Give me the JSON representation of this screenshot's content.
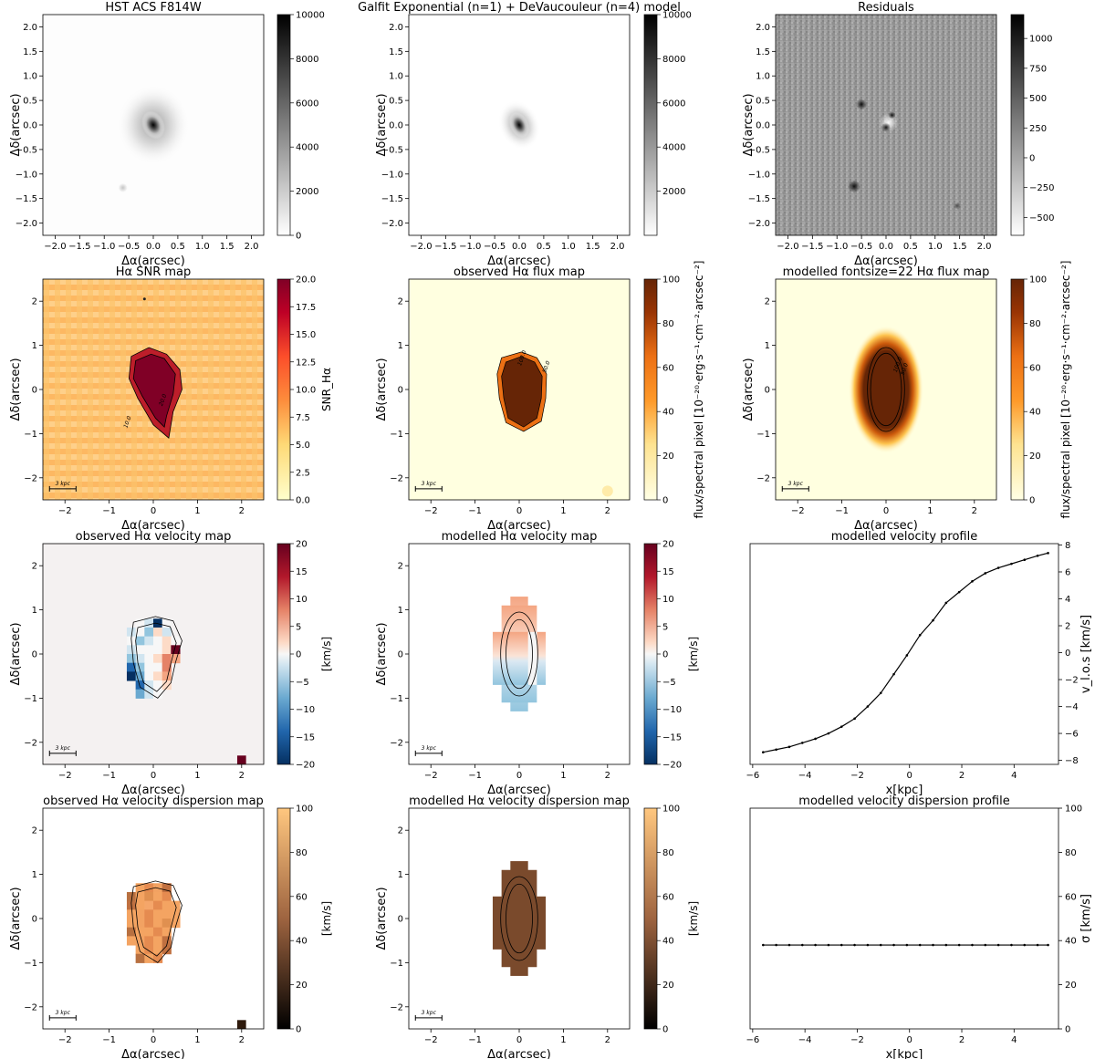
{
  "chart_data": [
    {
      "type": "heatmap",
      "title": "HST ACS F814W",
      "xlabel": "Δα(arcsec)",
      "ylabel": "Δδ(arcsec)",
      "xlim": [
        -2.25,
        2.25
      ],
      "ylim": [
        -2.25,
        2.25
      ],
      "xticks": [
        "−2.0",
        "−1.5",
        "−1.0",
        "−0.5",
        "0.0",
        "0.5",
        "1.0",
        "1.5",
        "2.0"
      ],
      "yticks": [
        "−2.0",
        "−1.5",
        "−1.0",
        "−0.5",
        "0.0",
        "0.5",
        "1.0",
        "1.5",
        "2.0"
      ],
      "colormap": "Greys",
      "colorbar_range": [
        0,
        10000
      ],
      "colorbar_ticks": [
        "0",
        "2000",
        "4000",
        "6000",
        "8000",
        "10000"
      ],
      "colorbar_label": ""
    },
    {
      "type": "heatmap",
      "title": "Galfit Exponential (n=1) + DeVaucouleur (n=4) model",
      "xlabel": "Δα(arcsec)",
      "ylabel": "Δδ(arcsec)",
      "xlim": [
        -2.25,
        2.25
      ],
      "ylim": [
        -2.25,
        2.25
      ],
      "xticks": [
        "−2.0",
        "−1.5",
        "−1.0",
        "−0.5",
        "0.0",
        "0.5",
        "1.0",
        "1.5",
        "2.0"
      ],
      "yticks": [
        "−2.0",
        "−1.5",
        "−1.0",
        "−0.5",
        "0.0",
        "0.5",
        "1.0",
        "1.5",
        "2.0"
      ],
      "colormap": "Greys",
      "colorbar_range": [
        0,
        10000
      ],
      "colorbar_ticks": [
        "2000",
        "4000",
        "6000",
        "8000",
        "10000"
      ],
      "colorbar_label": ""
    },
    {
      "type": "heatmap",
      "title": "Residuals",
      "xlabel": "Δα(arcsec)",
      "ylabel": "Δδ(arcsec)",
      "xlim": [
        -2.25,
        2.25
      ],
      "ylim": [
        -2.25,
        2.25
      ],
      "xticks": [
        "−2.0",
        "−1.5",
        "−1.0",
        "−0.5",
        "0.0",
        "0.5",
        "1.0",
        "1.5",
        "2.0"
      ],
      "yticks": [
        "−2.0",
        "−1.5",
        "−1.0",
        "−0.5",
        "0.0",
        "0.5",
        "1.0",
        "1.5",
        "2.0"
      ],
      "colormap": "Greys",
      "colorbar_range": [
        -650,
        1200
      ],
      "colorbar_ticks": [
        "−500",
        "−250",
        "0",
        "250",
        "500",
        "750",
        "1000"
      ],
      "colorbar_label": ""
    },
    {
      "type": "heatmap",
      "title": "Hα SNR map",
      "xlabel": "Δα(arcsec)",
      "ylabel": "Δδ(arcsec)",
      "xlim": [
        -2.5,
        2.5
      ],
      "ylim": [
        -2.5,
        2.5
      ],
      "xticks": [
        "−2",
        "−1",
        "0",
        "1",
        "2"
      ],
      "yticks": [
        "−2",
        "−1",
        "0",
        "1",
        "2"
      ],
      "colormap": "YlOrRd",
      "colorbar_range": [
        0,
        20
      ],
      "colorbar_ticks": [
        "0.0",
        "2.5",
        "5.0",
        "7.5",
        "10.0",
        "12.5",
        "15.0",
        "17.5",
        "20.0"
      ],
      "colorbar_label": "SNR_Hα",
      "contour_labels": [
        "10.0",
        "20.0"
      ],
      "scalebar_label": "3 kpc"
    },
    {
      "type": "heatmap",
      "title": "observed Hα flux map",
      "xlabel": "Δα(arcsec)",
      "ylabel": "Δδ(arcsec)",
      "xlim": [
        -2.5,
        2.5
      ],
      "ylim": [
        -2.5,
        2.5
      ],
      "xticks": [
        "−2",
        "−1",
        "0",
        "1",
        "2"
      ],
      "yticks": [
        "−2",
        "−1",
        "0",
        "1",
        "2"
      ],
      "colormap": "YlOrBr",
      "colorbar_range": [
        0,
        100
      ],
      "colorbar_ticks": [
        "0",
        "20",
        "40",
        "60",
        "80",
        "100"
      ],
      "colorbar_label": "flux/spectral pixel [10⁻²⁰·erg·s⁻¹·cm⁻²·arcsec⁻²]",
      "contour_labels": [
        "50.0",
        "100.0"
      ],
      "scalebar_label": "3 kpc"
    },
    {
      "type": "heatmap",
      "title": "modelled  fontsize=22 Hα flux map",
      "xlabel": "Δα(arcsec)",
      "ylabel": "Δδ(arcsec)",
      "xlim": [
        -2.5,
        2.5
      ],
      "ylim": [
        -2.5,
        2.5
      ],
      "xticks": [
        "−2",
        "−1",
        "0",
        "1",
        "2"
      ],
      "yticks": [
        "−2",
        "−1",
        "0",
        "1",
        "2"
      ],
      "colormap": "YlOrBr",
      "colorbar_range": [
        0,
        100
      ],
      "colorbar_ticks": [
        "0",
        "20",
        "40",
        "60",
        "80",
        "100"
      ],
      "colorbar_label": "flux/spectral pixel [10⁻²⁰·erg·s⁻¹·cm⁻²·arcsec⁻²]",
      "contour_labels": [
        "50.0",
        "100.0"
      ],
      "scalebar_label": "3 kpc"
    },
    {
      "type": "heatmap",
      "title": "observed Hα velocity map",
      "xlabel": "Δα(arcsec)",
      "ylabel": "Δδ(arcsec)",
      "xlim": [
        -2.5,
        2.5
      ],
      "ylim": [
        -2.5,
        2.5
      ],
      "xticks": [
        "−2",
        "−1",
        "0",
        "1",
        "2"
      ],
      "yticks": [
        "−2",
        "−1",
        "0",
        "1",
        "2"
      ],
      "colormap": "RdBu_r",
      "colorbar_range": [
        -20,
        20
      ],
      "colorbar_ticks": [
        "−20",
        "−15",
        "−10",
        "−5",
        "0",
        "5",
        "10",
        "15",
        "20"
      ],
      "colorbar_label": "[km/s]",
      "scalebar_label": "3 kpc"
    },
    {
      "type": "heatmap",
      "title": "modelled  Hα velocity map",
      "xlabel": "Δα(arcsec)",
      "ylabel": "Δδ(arcsec)",
      "xlim": [
        -2.5,
        2.5
      ],
      "ylim": [
        -2.5,
        2.5
      ],
      "xticks": [
        "−2",
        "−1",
        "0",
        "1",
        "2"
      ],
      "yticks": [
        "−2",
        "−1",
        "0",
        "1",
        "2"
      ],
      "colormap": "RdBu_r",
      "colorbar_range": [
        -20,
        20
      ],
      "colorbar_ticks": [
        "−20",
        "−15",
        "−10",
        "−5",
        "0",
        "5",
        "10",
        "15",
        "20"
      ],
      "colorbar_label": "[km/s]",
      "scalebar_label": "3 kpc"
    },
    {
      "type": "line",
      "title": "modelled velocity profile",
      "xlabel": "x[kpc]",
      "ylabel": "v_l.o.s [km/s]",
      "xlim": [
        -6.1,
        5.7
      ],
      "ylim": [
        -8.3,
        8.1
      ],
      "xticks": [
        "−6",
        "−4",
        "−2",
        "0",
        "2",
        "4"
      ],
      "yticks": [
        "−8",
        "−6",
        "−4",
        "−2",
        "0",
        "2",
        "4",
        "6",
        "8"
      ],
      "x": [
        -5.6,
        -5.1,
        -4.6,
        -4.1,
        -3.6,
        -3.1,
        -2.6,
        -2.1,
        -1.6,
        -1.1,
        -0.6,
        -0.1,
        0.4,
        0.9,
        1.4,
        1.9,
        2.4,
        2.9,
        3.4,
        3.9,
        4.4,
        4.9,
        5.3
      ],
      "y": [
        -7.4,
        -7.2,
        -7.0,
        -6.7,
        -6.4,
        -6.0,
        -5.5,
        -4.9,
        -4.0,
        -3.0,
        -1.6,
        -0.2,
        1.3,
        2.4,
        3.7,
        4.5,
        5.3,
        5.9,
        6.3,
        6.6,
        6.9,
        7.2,
        7.4
      ]
    },
    {
      "type": "heatmap",
      "title": "observed Hα velocity dispersion map",
      "xlabel": "Δα(arcsec)",
      "ylabel": "Δδ(arcsec)",
      "xlim": [
        -2.5,
        2.5
      ],
      "ylim": [
        -2.5,
        2.5
      ],
      "xticks": [
        "−2",
        "−1",
        "0",
        "1",
        "2"
      ],
      "yticks": [
        "−2",
        "−1",
        "0",
        "1",
        "2"
      ],
      "colormap": "copper",
      "colorbar_range": [
        0,
        100
      ],
      "colorbar_ticks": [
        "0",
        "20",
        "40",
        "60",
        "80",
        "100"
      ],
      "colorbar_label": "[km/s]",
      "scalebar_label": "3 kpc"
    },
    {
      "type": "heatmap",
      "title": "modelled Hα velocity dispersion map",
      "xlabel": "Δα(arcsec)",
      "ylabel": "Δδ(arcsec)",
      "xlim": [
        -2.5,
        2.5
      ],
      "ylim": [
        -2.5,
        2.5
      ],
      "xticks": [
        "−2",
        "−1",
        "0",
        "1",
        "2"
      ],
      "yticks": [
        "−2",
        "−1",
        "0",
        "1",
        "2"
      ],
      "colormap": "copper",
      "colorbar_range": [
        0,
        100
      ],
      "colorbar_ticks": [
        "0",
        "20",
        "40",
        "60",
        "80",
        "100"
      ],
      "colorbar_label": "[km/s]",
      "scalebar_label": "3 kpc"
    },
    {
      "type": "line",
      "title": "modelled  velocity dispersion profile",
      "xlabel": "x[kpc]",
      "ylabel": "σ [km/s]",
      "xlim": [
        -6.1,
        5.7
      ],
      "ylim": [
        0,
        100
      ],
      "xticks": [
        "−6",
        "−4",
        "−2",
        "0",
        "2",
        "4"
      ],
      "yticks": [
        "0",
        "20",
        "40",
        "60",
        "80",
        "100"
      ],
      "x": [
        -5.6,
        -5.1,
        -4.6,
        -4.1,
        -3.6,
        -3.1,
        -2.6,
        -2.1,
        -1.6,
        -1.1,
        -0.6,
        -0.1,
        0.4,
        0.9,
        1.4,
        1.9,
        2.4,
        2.9,
        3.4,
        3.9,
        4.4,
        4.9,
        5.3
      ],
      "y": [
        38,
        38,
        38,
        38,
        38,
        38,
        38,
        38,
        38,
        38,
        38,
        38,
        38,
        38,
        38,
        38,
        38,
        38,
        38,
        38,
        38,
        38,
        38
      ]
    }
  ]
}
